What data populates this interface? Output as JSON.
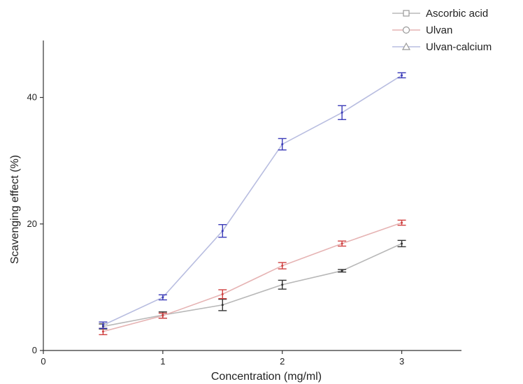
{
  "chart_data": {
    "type": "line",
    "title": "",
    "xlabel": "Concentration (mg/ml)",
    "ylabel": "Scavenging effect (%)",
    "xlim": [
      0,
      3.5
    ],
    "ylim": [
      0,
      49
    ],
    "xticks": [
      0,
      1,
      2,
      3
    ],
    "yticks": [
      0,
      20,
      40
    ],
    "grid": false,
    "legend_position": "top-right",
    "x": [
      0.5,
      1,
      1.5,
      2,
      2.5,
      3
    ],
    "series": [
      {
        "name": "Ascorbic acid",
        "marker": "square",
        "line_color": "#b8b8b8",
        "error_color": "#333333",
        "values": [
          3.8,
          5.6,
          7.2,
          10.4,
          12.6,
          16.9
        ],
        "errors": [
          0.4,
          0.5,
          0.9,
          0.7,
          0.2,
          0.5
        ]
      },
      {
        "name": "Ulvan",
        "marker": "circle",
        "line_color": "#e6b4b4",
        "error_color": "#d04040",
        "values": [
          3.0,
          5.5,
          8.9,
          13.4,
          16.9,
          20.2
        ],
        "errors": [
          0.5,
          0.4,
          0.7,
          0.5,
          0.4,
          0.4
        ]
      },
      {
        "name": "Ulvan-calcium",
        "marker": "triangle",
        "line_color": "#b8bde0",
        "error_color": "#3a3ab8",
        "values": [
          4.0,
          8.4,
          18.9,
          32.6,
          37.6,
          43.5
        ],
        "errors": [
          0.5,
          0.4,
          1.0,
          0.9,
          1.1,
          0.4
        ]
      }
    ]
  }
}
